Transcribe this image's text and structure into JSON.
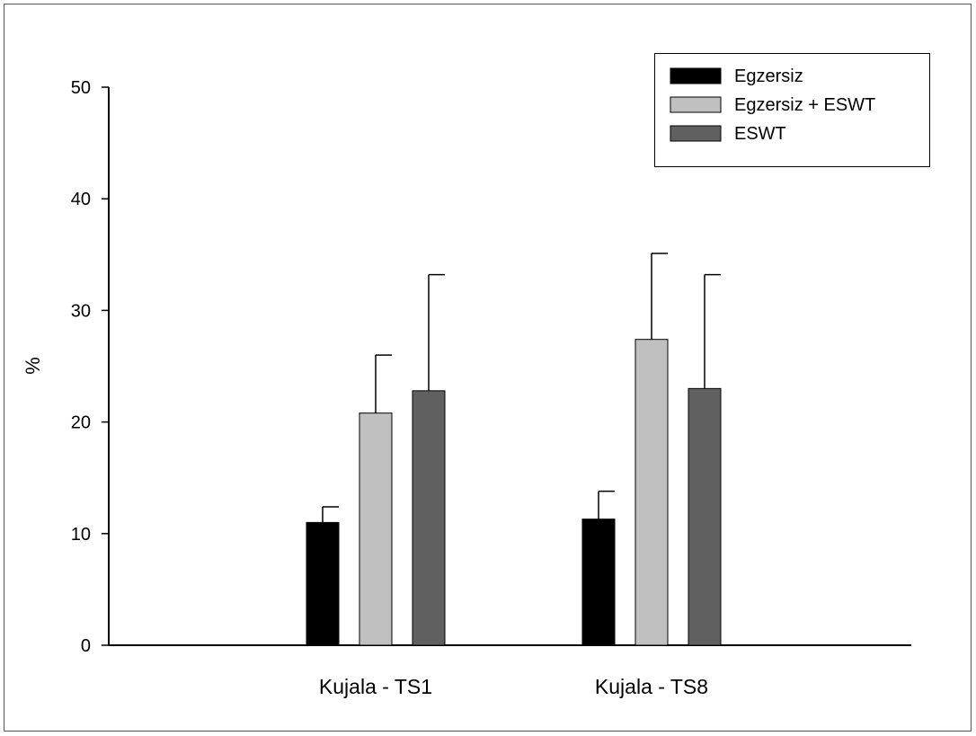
{
  "chart_data": {
    "type": "bar",
    "categories": [
      "Kujala - TS1",
      "Kujala - TS8"
    ],
    "series": [
      {
        "name": "Egzersiz",
        "values": [
          11.0,
          11.3
        ],
        "error": [
          1.4,
          2.5
        ],
        "color": "#000000"
      },
      {
        "name": "Egzersiz + ESWT",
        "values": [
          20.8,
          27.4
        ],
        "error": [
          5.2,
          7.7
        ],
        "color": "#c0c0c0"
      },
      {
        "name": "ESWT",
        "values": [
          22.8,
          23.0
        ],
        "error": [
          10.4,
          10.2
        ],
        "color": "#606060"
      }
    ],
    "ylabel": "%",
    "xlabel": "",
    "ylim": [
      0,
      50
    ],
    "yticks": [
      0,
      10,
      20,
      30,
      40,
      50
    ],
    "grid": false,
    "legend_position": "top-right"
  }
}
